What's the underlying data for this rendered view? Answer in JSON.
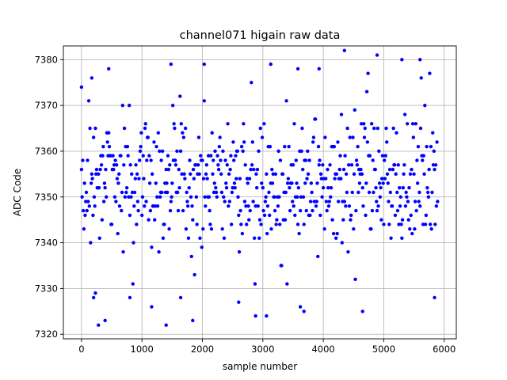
{
  "chart_data": {
    "type": "scatter",
    "title": "channel071 higain raw data",
    "xlabel": "sample number",
    "ylabel": "ADC Code",
    "xlim": [
      -300,
      6200
    ],
    "ylim": [
      7319,
      7383
    ],
    "xticks": [
      0,
      1000,
      2000,
      3000,
      4000,
      5000,
      6000
    ],
    "yticks": [
      7320,
      7330,
      7340,
      7350,
      7360,
      7370,
      7380
    ],
    "grid": true,
    "marker_color": "#0000ff",
    "n_samples": 5900,
    "sampling": {
      "mean": 7353.5,
      "std": 7.5,
      "x_step": 10,
      "seed": 71
    },
    "points": [
      {
        "x": 0,
        "y": 7374
      },
      {
        "x": 170,
        "y": 7376
      },
      {
        "x": 200,
        "y": 7328
      },
      {
        "x": 230,
        "y": 7329
      },
      {
        "x": 280,
        "y": 7322
      },
      {
        "x": 390,
        "y": 7323
      },
      {
        "x": 450,
        "y": 7378
      },
      {
        "x": 800,
        "y": 7328
      },
      {
        "x": 1160,
        "y": 7326
      },
      {
        "x": 1400,
        "y": 7322
      },
      {
        "x": 1480,
        "y": 7379
      },
      {
        "x": 1640,
        "y": 7328
      },
      {
        "x": 1840,
        "y": 7323
      },
      {
        "x": 2030,
        "y": 7379
      },
      {
        "x": 2600,
        "y": 7327
      },
      {
        "x": 2880,
        "y": 7324
      },
      {
        "x": 3060,
        "y": 7324
      },
      {
        "x": 3130,
        "y": 7379
      },
      {
        "x": 3580,
        "y": 7378
      },
      {
        "x": 3620,
        "y": 7326
      },
      {
        "x": 3680,
        "y": 7325
      },
      {
        "x": 3930,
        "y": 7378
      },
      {
        "x": 4350,
        "y": 7382
      },
      {
        "x": 4650,
        "y": 7325
      },
      {
        "x": 4890,
        "y": 7381
      },
      {
        "x": 5300,
        "y": 7380
      },
      {
        "x": 5600,
        "y": 7380
      },
      {
        "x": 5840,
        "y": 7328
      }
    ]
  }
}
